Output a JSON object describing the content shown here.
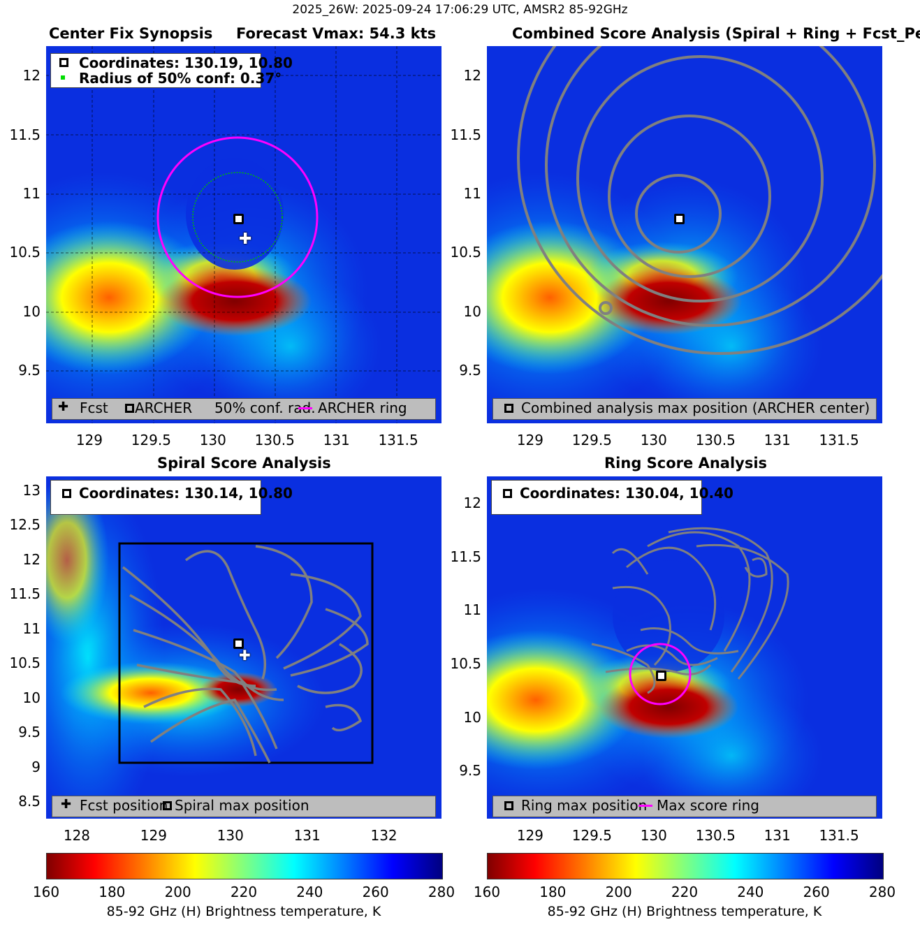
{
  "header": {
    "suptitle": "2025_26W: 2025-09-24 17:06:29 UTC, AMSR2 85-92GHz"
  },
  "colors": {
    "ring": "#ff00ff",
    "confidence_circle": "#00c000",
    "contour": "#808080",
    "legend_bg": "#bdbdbd"
  },
  "panels": {
    "center_fix": {
      "title_left": "Center Fix Synopsis",
      "title_right": "Forecast Vmax: 54.3 kts",
      "legend_top": {
        "coords": "Coordinates: 130.19, 10.80",
        "radius": "Radius of 50% conf: 0.37°"
      },
      "legend_bottom": {
        "fcst": "Fcst",
        "archer": "ARCHER",
        "conf": "50% conf. rad.",
        "ring": "ARCHER ring"
      },
      "xticks": [
        "129",
        "129.5",
        "130",
        "130.5",
        "131",
        "131.5"
      ],
      "yticks": [
        "12",
        "11.5",
        "11",
        "10.5",
        "10",
        "9.5"
      ]
    },
    "combined": {
      "title": "Combined Score Analysis (Spiral + Ring + Fcst_Pe",
      "legend_bottom": "Combined analysis max position (ARCHER center)",
      "xticks": [
        "129",
        "129.5",
        "130",
        "130.5",
        "131",
        "131.5"
      ],
      "yticks": [
        "12",
        "11.5",
        "11",
        "10.5",
        "10",
        "9.5"
      ]
    },
    "spiral": {
      "title": "Spiral Score Analysis",
      "legend_top": {
        "coords": "Coordinates: 130.14, 10.80"
      },
      "legend_bottom": {
        "fcst": "Fcst position",
        "spiral": "Spiral max position"
      },
      "xticks": [
        "128",
        "129",
        "130",
        "131",
        "132"
      ],
      "yticks": [
        "13",
        "12.5",
        "12",
        "11.5",
        "11",
        "10.5",
        "10",
        "9.5",
        "9",
        "8.5"
      ]
    },
    "ring": {
      "title": "Ring Score Analysis",
      "legend_top": {
        "coords": "Coordinates: 130.04, 10.40"
      },
      "legend_bottom": {
        "ring_max": "Ring max position",
        "max_score": "Max score ring"
      },
      "xticks": [
        "129",
        "129.5",
        "130",
        "130.5",
        "131",
        "131.5"
      ],
      "yticks": [
        "12",
        "11.5",
        "11",
        "10.5",
        "10",
        "9.5"
      ]
    }
  },
  "colorbar": {
    "ticks": [
      "160",
      "180",
      "200",
      "220",
      "240",
      "260",
      "280"
    ],
    "label": "85-92 GHz (H) Brightness temperature, K",
    "range": [
      160,
      280
    ]
  },
  "chart_data": [
    {
      "type": "heatmap",
      "title": "Center Fix Synopsis",
      "xlim": [
        128.65,
        131.85
      ],
      "ylim": [
        9.05,
        12.25
      ],
      "center_fix": {
        "archer": [
          130.19,
          10.8
        ],
        "forecast": [
          130.23,
          10.65
        ],
        "conf_radius_deg": 0.37
      }
    },
    {
      "type": "heatmap",
      "title": "Combined Score Analysis",
      "xlim": [
        128.65,
        131.85
      ],
      "ylim": [
        9.05,
        12.25
      ],
      "max_position": [
        130.19,
        10.8
      ]
    },
    {
      "type": "heatmap",
      "title": "Spiral Score Analysis",
      "xlim": [
        127.6,
        132.75
      ],
      "ylim": [
        8.25,
        13.2
      ],
      "max_position": [
        130.14,
        10.8
      ],
      "forecast": [
        130.23,
        10.65
      ]
    },
    {
      "type": "heatmap",
      "title": "Ring Score Analysis",
      "xlim": [
        128.65,
        131.85
      ],
      "ylim": [
        9.05,
        12.25
      ],
      "max_position": [
        130.04,
        10.4
      ]
    }
  ]
}
